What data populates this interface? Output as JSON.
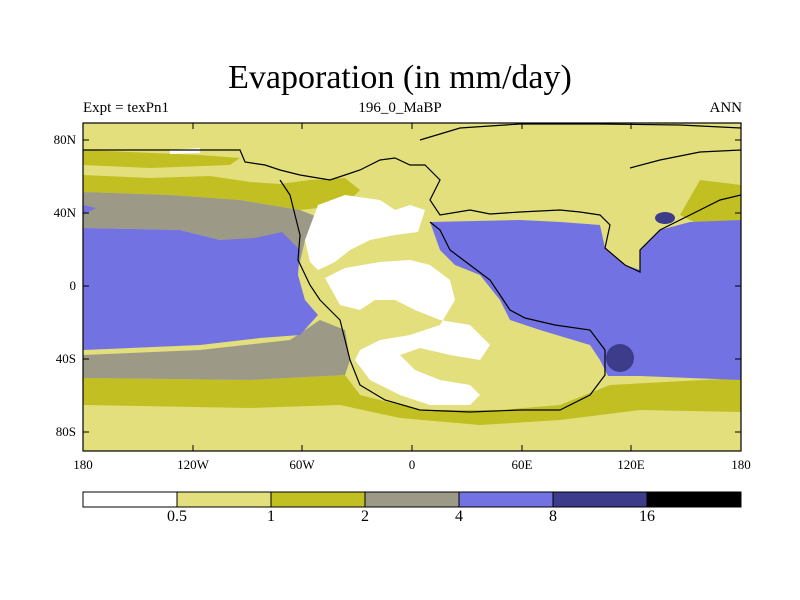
{
  "title": "Evaporation (in mm/day)",
  "subtitle_left": "Expt = texPn1",
  "subtitle_center": "196_0_MaBP",
  "subtitle_right": "ANN",
  "lat_labels": [
    "80N",
    "40N",
    "0",
    "40S",
    "80S"
  ],
  "lon_labels": [
    "180",
    "120W",
    "60W",
    "0",
    "60E",
    "120E",
    "180"
  ],
  "colorbar": {
    "labels": [
      "0.5",
      "1",
      "2",
      "4",
      "8",
      "16"
    ],
    "colors": [
      "#ffffff",
      "#e2df7c",
      "#c2bf22",
      "#9c9a86",
      "#7272e2",
      "#3c3c8a",
      "#000000"
    ]
  },
  "colors": {
    "white": "#ffffff",
    "pale_yellow": "#e2df7c",
    "olive": "#c2bf22",
    "gray": "#9c9a86",
    "blue": "#7272e2",
    "dark_blue": "#3c3c8a"
  }
}
